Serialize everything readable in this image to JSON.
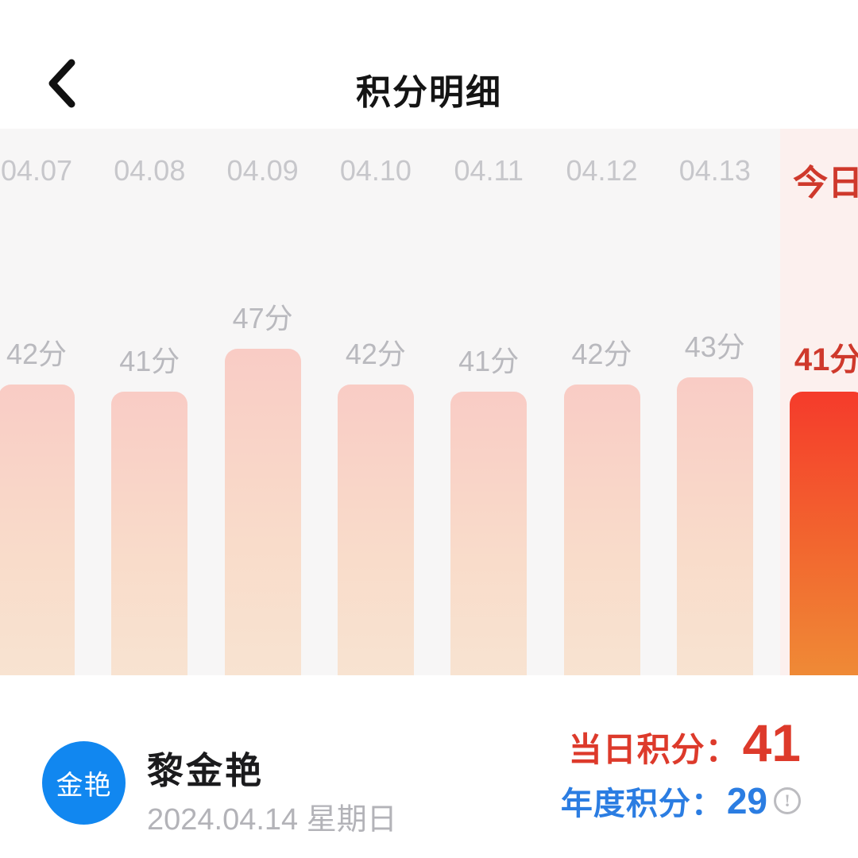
{
  "header": {
    "title": "积分明细"
  },
  "chart_data": {
    "type": "bar",
    "title": "",
    "categories": [
      "04.07",
      "04.08",
      "04.09",
      "04.10",
      "04.11",
      "04.12",
      "04.13",
      "今日"
    ],
    "values": [
      42,
      41,
      47,
      42,
      41,
      42,
      43,
      41
    ],
    "unit": "分",
    "highlight_index": 7,
    "highlight_label": "今日",
    "ylim": [
      0,
      50
    ],
    "grid": false,
    "legend": "none",
    "notes": "value labels shown above each bar; last column (today) highlighted in red on pink panel; first and last columns partially cut off by screen edges"
  },
  "profile": {
    "avatar_text": "金艳",
    "name": "黎金艳",
    "date": "2024.04.14 星期日"
  },
  "scores": {
    "daily_label": "当日积分：",
    "daily_value": "41",
    "annual_label": "年度积分：",
    "annual_value": "29",
    "info_icon_glyph": "!"
  },
  "colors": {
    "accent_red": "#dd3a2b",
    "today_red": "#cf392c",
    "accent_blue": "#2b7de2",
    "avatar_blue": "#1187f0",
    "chart_bg": "#f7f6f6",
    "today_panel_bg": "#fcf0ee",
    "bar_gradient_top": "#f9ccc5",
    "bar_gradient_bottom": "#f8e3d1",
    "today_bar_gradient_top": "#f53b2b",
    "today_bar_gradient_bottom": "#ef8a36"
  }
}
